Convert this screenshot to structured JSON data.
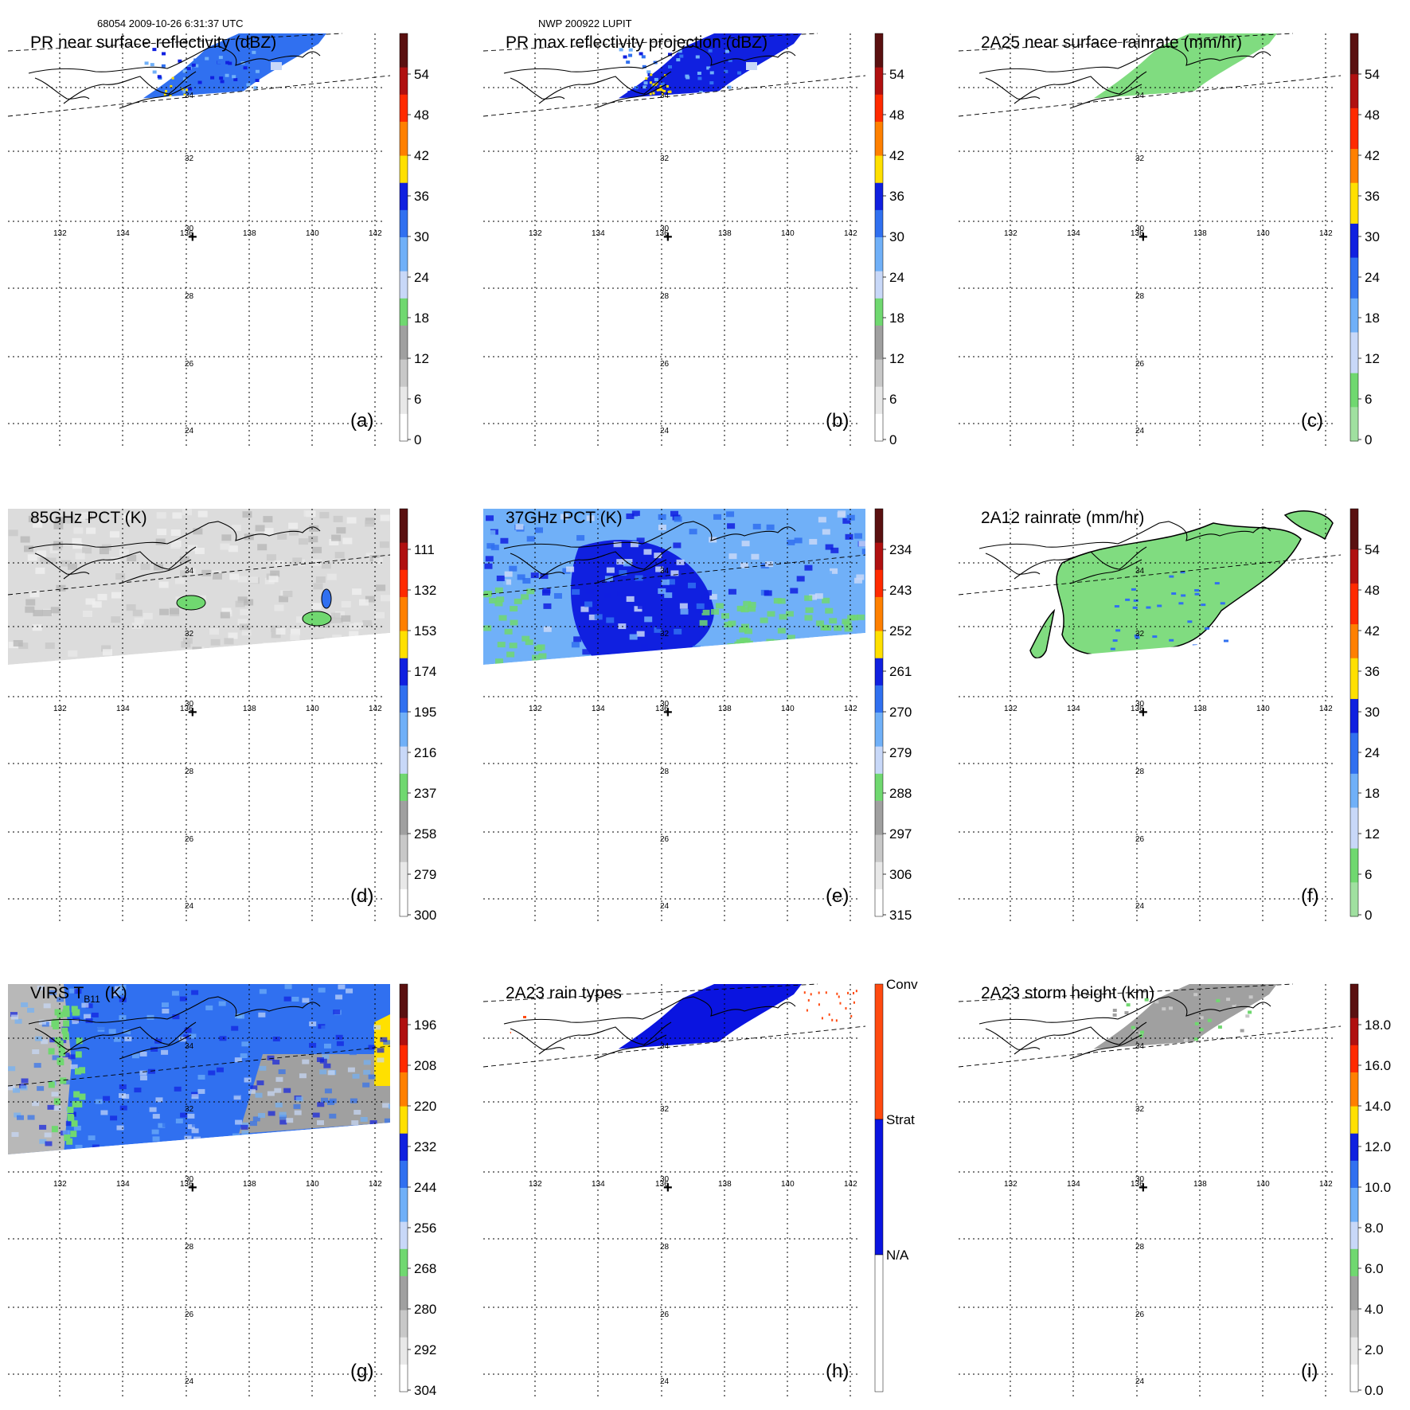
{
  "header": {
    "orbit_time": "68054 2009-10-26 6:31:37 UTC",
    "storm": "NWP 200922 LUPIT"
  },
  "map": {
    "lon_labels": [
      "132",
      "134",
      "136",
      "138",
      "140",
      "142"
    ],
    "lat_labels_top": [
      "34",
      "32",
      "30",
      "28",
      "26",
      "24"
    ],
    "lat_labels_bottom": [
      "32",
      "30",
      "28",
      "26",
      "24"
    ],
    "center_marker": "+"
  },
  "panels": [
    {
      "id": "a",
      "letter": "(a)",
      "title": "PR near surface reflectivity (dBZ)",
      "colorbar": {
        "palette": "pr",
        "labels": [
          "54",
          "48",
          "42",
          "36",
          "30",
          "24",
          "18",
          "12",
          "6",
          "0"
        ]
      },
      "swath": "pr",
      "fill": "pr_ns"
    },
    {
      "id": "b",
      "letter": "(b)",
      "title": "PR max reflectivity projection (dBZ)",
      "colorbar": {
        "palette": "pr",
        "labels": [
          "54",
          "48",
          "42",
          "36",
          "30",
          "24",
          "18",
          "12",
          "6",
          "0"
        ]
      },
      "swath": "pr",
      "fill": "pr_max"
    },
    {
      "id": "c",
      "letter": "(c)",
      "title": "2A25 near surface rainrate (mm/hr)",
      "colorbar": {
        "palette": "rain",
        "labels": [
          "54",
          "48",
          "42",
          "36",
          "30",
          "24",
          "18",
          "12",
          "6",
          "0"
        ]
      },
      "swath": "pr",
      "fill": "rain25"
    },
    {
      "id": "d",
      "letter": "(d)",
      "title": "85GHz PCT (K)",
      "colorbar": {
        "palette": "pct",
        "labels": [
          "111",
          "132",
          "153",
          "174",
          "195",
          "216",
          "237",
          "258",
          "279",
          "300"
        ]
      },
      "swath": "tmi",
      "fill": "pct85"
    },
    {
      "id": "e",
      "letter": "(e)",
      "title": "37GHz PCT (K)",
      "colorbar": {
        "palette": "pct",
        "labels": [
          "234",
          "243",
          "252",
          "261",
          "270",
          "279",
          "288",
          "297",
          "306",
          "315"
        ]
      },
      "swath": "tmi",
      "fill": "pct37"
    },
    {
      "id": "f",
      "letter": "(f)",
      "title": "2A12 rainrate (mm/hr)",
      "colorbar": {
        "palette": "rain",
        "labels": [
          "54",
          "48",
          "42",
          "36",
          "30",
          "24",
          "18",
          "12",
          "6",
          "0"
        ]
      },
      "swath": "tmi",
      "fill": "rain12"
    },
    {
      "id": "g",
      "letter": "(g)",
      "title": "VIRS T",
      "title_sub": "B11",
      "title_tail": " (K)",
      "colorbar": {
        "palette": "pct",
        "labels": [
          "196",
          "208",
          "220",
          "232",
          "244",
          "256",
          "268",
          "280",
          "292",
          "304"
        ]
      },
      "swath": "virs",
      "fill": "virs"
    },
    {
      "id": "h",
      "letter": "(h)",
      "title": "2A23 rain types",
      "colorbar": {
        "palette": "types",
        "labels": [
          "Conv",
          "Strat",
          "N/A"
        ]
      },
      "swath": "pr",
      "fill": "types"
    },
    {
      "id": "i",
      "letter": "(i)",
      "title": "2A23 storm height (km)",
      "colorbar": {
        "palette": "height",
        "labels": [
          "18.0",
          "16.0",
          "14.0",
          "12.0",
          "10.0",
          "8.0",
          "6.0",
          "4.0",
          "2.0",
          "0.0"
        ]
      },
      "swath": "pr",
      "fill": "height"
    }
  ],
  "colors": {
    "strat": "#0a14e0",
    "conv": "#ff4a10",
    "green": "#80dc80"
  }
}
